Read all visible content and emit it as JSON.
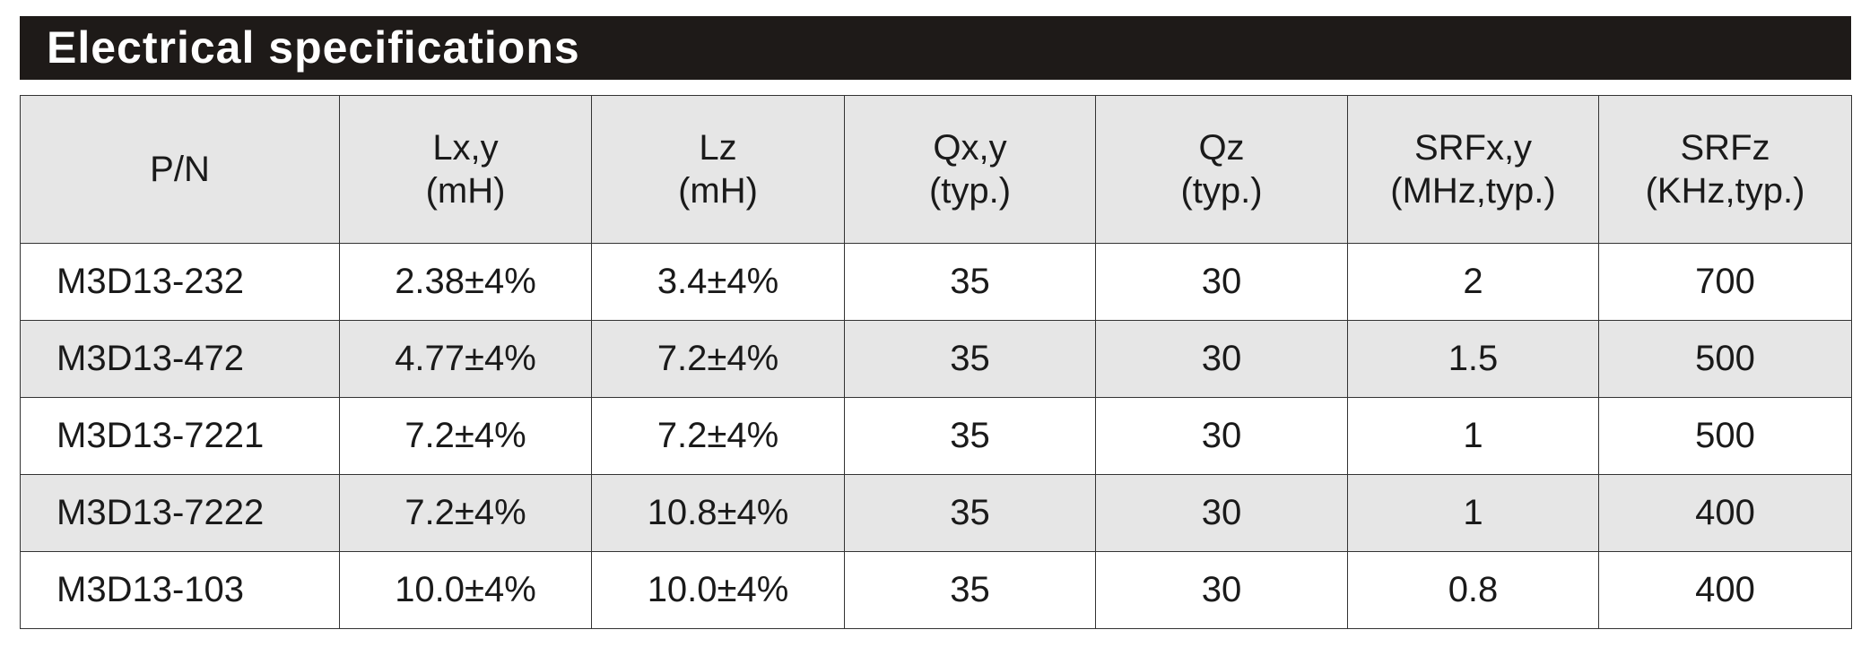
{
  "header": {
    "title": "Electrical specifications"
  },
  "table": {
    "columns": [
      [
        "P/N"
      ],
      [
        "Lx,y",
        "(mH)"
      ],
      [
        "Lz",
        "(mH)"
      ],
      [
        "Qx,y",
        "(typ.)"
      ],
      [
        "Qz",
        "(typ.)"
      ],
      [
        "SRFx,y",
        "(MHz,typ.)"
      ],
      [
        "SRFz",
        "(KHz,typ.)"
      ]
    ],
    "rows": [
      [
        "M3D13-232",
        "2.38±4%",
        "3.4±4%",
        "35",
        "30",
        "2",
        "700"
      ],
      [
        "M3D13-472",
        "4.77±4%",
        "7.2±4%",
        "35",
        "30",
        "1.5",
        "500"
      ],
      [
        "M3D13-7221",
        "7.2±4%",
        "7.2±4%",
        "35",
        "30",
        "1",
        "500"
      ],
      [
        "M3D13-7222",
        "7.2±4%",
        "10.8±4%",
        "35",
        "30",
        "1",
        "400"
      ],
      [
        "M3D13-103",
        "10.0±4%",
        "10.0±4%",
        "35",
        "30",
        "0.8",
        "400"
      ]
    ]
  }
}
